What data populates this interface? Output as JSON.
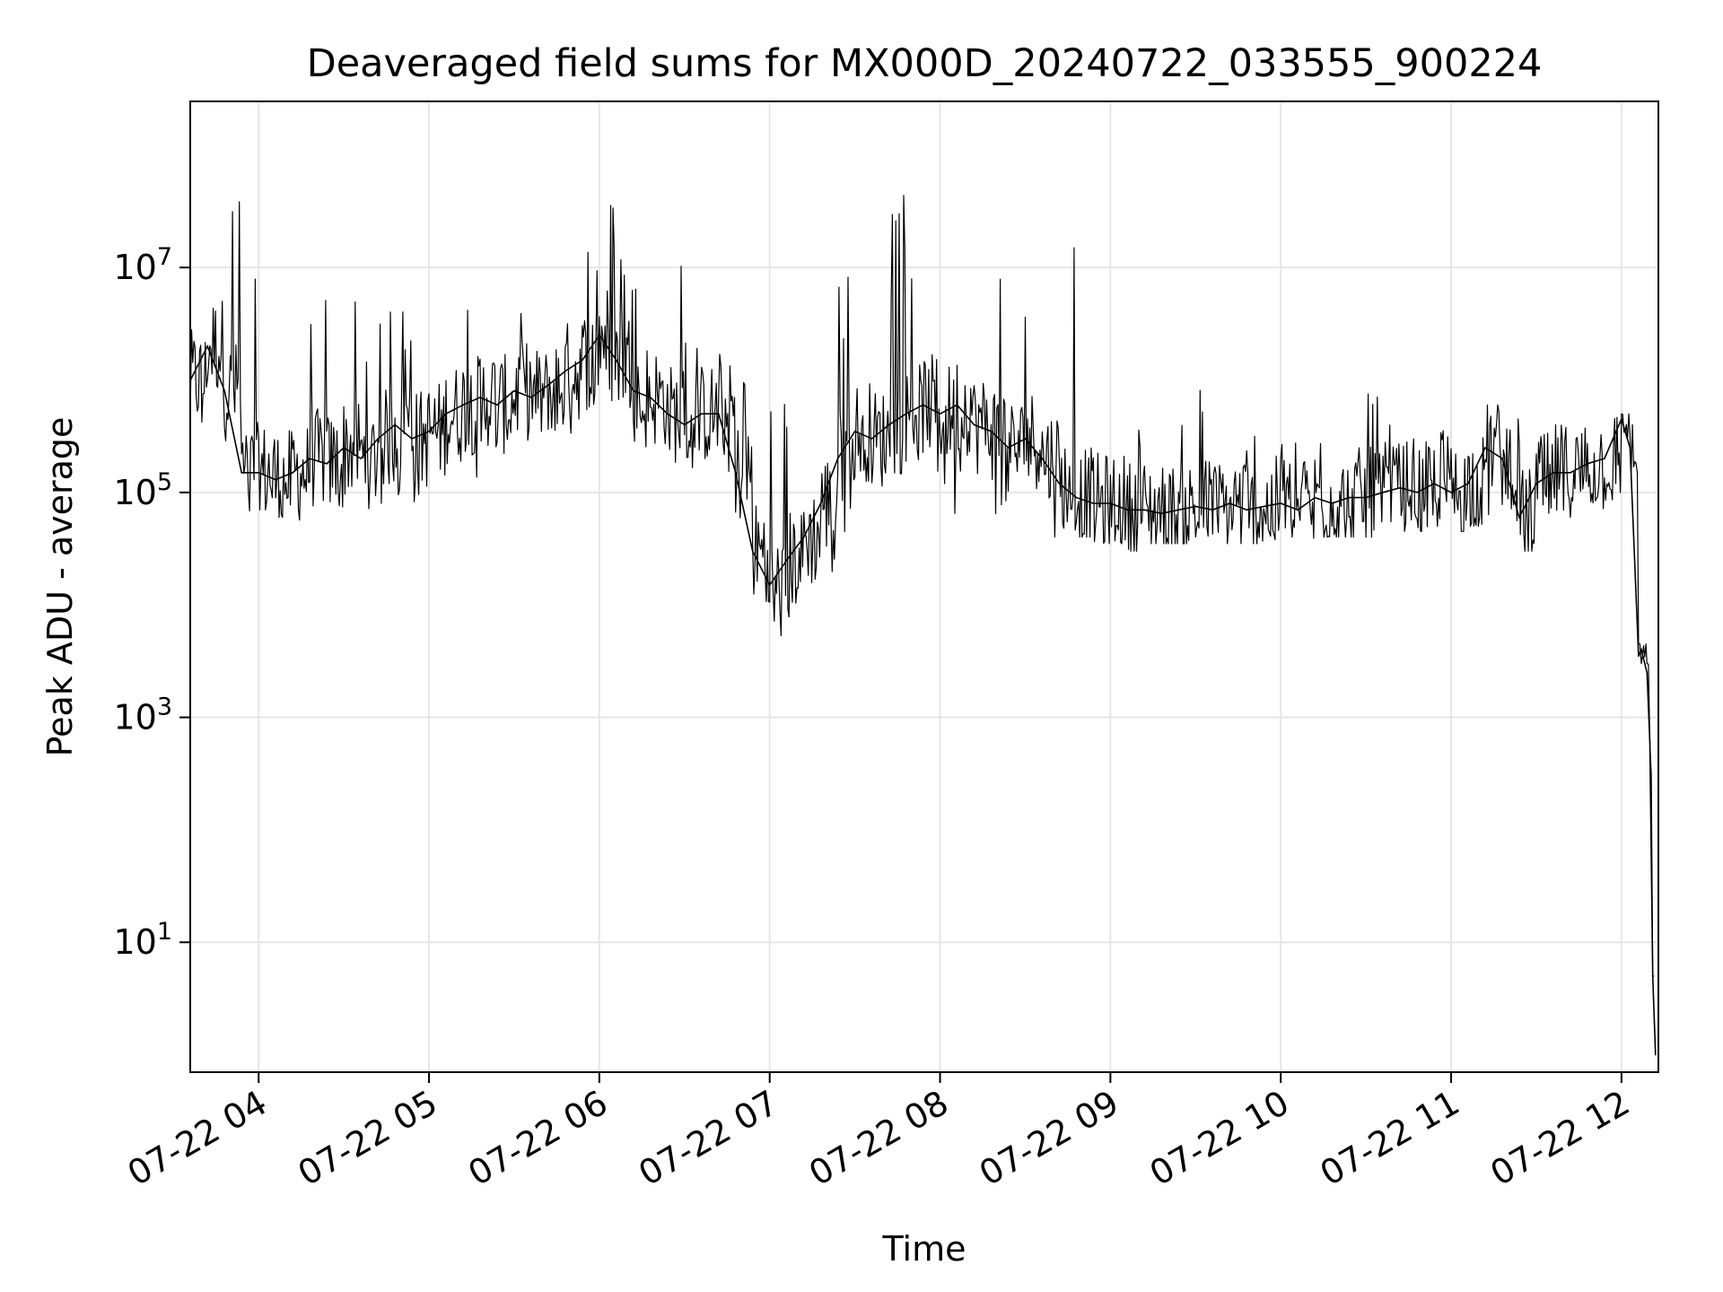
{
  "chart_data": {
    "type": "line",
    "title": "Deaveraged field sums for MX000D_20240722_033555_900224",
    "xlabel": "Time",
    "ylabel": "Peak ADU - average",
    "x_scale": "time",
    "y_scale": "log",
    "xlim": [
      "2024-07-22 03:35:55",
      "2024-07-22 12:13:00"
    ],
    "ylim": [
      0.7,
      300000000
    ],
    "grid": true,
    "line_color": "#000000",
    "grid_color": "#e6e6e6",
    "x_ticks": [
      "07-22 04",
      "07-22 05",
      "07-22 06",
      "07-22 07",
      "07-22 08",
      "07-22 09",
      "07-22 10",
      "07-22 11",
      "07-22 12"
    ],
    "x_tick_times": [
      "2024-07-22 04:00",
      "2024-07-22 05:00",
      "2024-07-22 06:00",
      "2024-07-22 07:00",
      "2024-07-22 08:00",
      "2024-07-22 09:00",
      "2024-07-22 10:00",
      "2024-07-22 11:00",
      "2024-07-22 12:00"
    ],
    "y_ticks": [
      {
        "value": 10,
        "base": "10",
        "exp": "1"
      },
      {
        "value": 1000,
        "base": "10",
        "exp": "3"
      },
      {
        "value": 100000,
        "base": "10",
        "exp": "5"
      },
      {
        "value": 10000000,
        "base": "10",
        "exp": "7"
      }
    ],
    "series": [
      {
        "x": [
          "2024-07-22 03:36",
          "2024-07-22 03:42",
          "2024-07-22 03:48",
          "2024-07-22 03:54",
          "2024-07-22 04:00",
          "2024-07-22 04:06",
          "2024-07-22 04:12",
          "2024-07-22 04:18",
          "2024-07-22 04:24",
          "2024-07-22 04:30",
          "2024-07-22 04:36",
          "2024-07-22 04:42",
          "2024-07-22 04:48",
          "2024-07-22 04:54",
          "2024-07-22 05:00",
          "2024-07-22 05:06",
          "2024-07-22 05:12",
          "2024-07-22 05:18",
          "2024-07-22 05:24",
          "2024-07-22 05:30",
          "2024-07-22 05:36",
          "2024-07-22 05:42",
          "2024-07-22 05:48",
          "2024-07-22 05:54",
          "2024-07-22 06:00",
          "2024-07-22 06:06",
          "2024-07-22 06:12",
          "2024-07-22 06:18",
          "2024-07-22 06:24",
          "2024-07-22 06:30",
          "2024-07-22 06:36",
          "2024-07-22 06:42",
          "2024-07-22 06:48",
          "2024-07-22 06:54",
          "2024-07-22 07:00",
          "2024-07-22 07:06",
          "2024-07-22 07:12",
          "2024-07-22 07:18",
          "2024-07-22 07:24",
          "2024-07-22 07:30",
          "2024-07-22 07:36",
          "2024-07-22 07:42",
          "2024-07-22 07:48",
          "2024-07-22 07:54",
          "2024-07-22 08:00",
          "2024-07-22 08:06",
          "2024-07-22 08:12",
          "2024-07-22 08:18",
          "2024-07-22 08:24",
          "2024-07-22 08:30",
          "2024-07-22 08:36",
          "2024-07-22 08:42",
          "2024-07-22 08:48",
          "2024-07-22 08:54",
          "2024-07-22 09:00",
          "2024-07-22 09:06",
          "2024-07-22 09:12",
          "2024-07-22 09:18",
          "2024-07-22 09:24",
          "2024-07-22 09:30",
          "2024-07-22 09:36",
          "2024-07-22 09:42",
          "2024-07-22 09:48",
          "2024-07-22 09:54",
          "2024-07-22 10:00",
          "2024-07-22 10:06",
          "2024-07-22 10:12",
          "2024-07-22 10:18",
          "2024-07-22 10:24",
          "2024-07-22 10:30",
          "2024-07-22 10:36",
          "2024-07-22 10:42",
          "2024-07-22 10:48",
          "2024-07-22 10:54",
          "2024-07-22 11:00",
          "2024-07-22 11:06",
          "2024-07-22 11:12",
          "2024-07-22 11:18",
          "2024-07-22 11:24",
          "2024-07-22 11:30",
          "2024-07-22 11:36",
          "2024-07-22 11:42",
          "2024-07-22 11:48",
          "2024-07-22 11:54",
          "2024-07-22 12:00",
          "2024-07-22 12:03",
          "2024-07-22 12:06",
          "2024-07-22 12:07",
          "2024-07-22 12:09",
          "2024-07-22 12:10",
          "2024-07-22 12:11",
          "2024-07-22 12:12"
        ],
        "y": [
          1000000,
          2000000,
          800000,
          150000,
          150000,
          130000,
          150000,
          200000,
          180000,
          250000,
          200000,
          300000,
          400000,
          300000,
          350000,
          500000,
          600000,
          700000,
          600000,
          800000,
          700000,
          900000,
          1200000,
          1500000,
          2500000,
          1500000,
          800000,
          700000,
          500000,
          400000,
          500000,
          500000,
          150000,
          30000,
          15000,
          25000,
          40000,
          80000,
          200000,
          350000,
          300000,
          400000,
          500000,
          600000,
          500000,
          600000,
          400000,
          350000,
          250000,
          300000,
          200000,
          120000,
          90000,
          80000,
          80000,
          70000,
          70000,
          65000,
          70000,
          75000,
          70000,
          80000,
          70000,
          75000,
          80000,
          70000,
          90000,
          80000,
          90000,
          90000,
          100000,
          110000,
          100000,
          120000,
          100000,
          120000,
          250000,
          200000,
          60000,
          120000,
          150000,
          150000,
          180000,
          200000,
          450000,
          250000,
          3500,
          4000,
          2500,
          600,
          5,
          1
        ],
        "spikes_max": [
          50000000,
          100000000,
          90000000,
          60000000,
          40000000,
          30000000,
          20000000,
          10000000,
          8000000,
          5000000,
          6000000,
          5000000,
          6000000,
          7000000,
          8000000,
          6000000,
          10000000,
          8000000,
          7000000,
          9000000,
          15000000,
          20000000,
          25000000,
          30000000,
          40000000,
          20000000,
          40000000,
          30000000,
          15000000,
          8000000,
          3000000,
          2000000,
          1500000,
          1000000,
          700000,
          900000,
          2000000,
          15000000,
          20000000,
          30000000,
          40000000,
          50000000,
          55000000,
          60000000,
          60000000,
          65000000,
          65000000,
          40000000,
          30000000,
          40000000,
          50000000,
          30000000,
          45000000,
          5000000,
          600000,
          400000,
          350000,
          300000,
          400000,
          1500000,
          350000,
          300000,
          350000,
          300000,
          350000,
          400000,
          350000,
          400000,
          450000,
          1500000,
          600000,
          350000,
          450000,
          400000,
          450000,
          500000,
          600000,
          450000,
          350000,
          450000,
          500000,
          400000,
          450000,
          600000,
          500000,
          400000,
          4500,
          4500,
          3000,
          1000,
          5,
          1
        ],
        "spikes_min": [
          300000,
          200000,
          70000,
          60000,
          70000,
          60000,
          50000,
          60000,
          60000,
          70000,
          60000,
          70000,
          80000,
          80000,
          90000,
          100000,
          120000,
          130000,
          150000,
          200000,
          200000,
          250000,
          300000,
          400000,
          500000,
          400000,
          250000,
          200000,
          150000,
          150000,
          200000,
          150000,
          40000,
          8000,
          5000,
          7000,
          10000,
          15000,
          40000,
          60000,
          50000,
          60000,
          70000,
          80000,
          50000,
          70000,
          50000,
          45000,
          40000,
          50000,
          40000,
          40000,
          40000,
          35000,
          35000,
          30000,
          35000,
          35000,
          35000,
          40000,
          35000,
          35000,
          35000,
          35000,
          40000,
          35000,
          40000,
          40000,
          40000,
          40000,
          45000,
          45000,
          45000,
          50000,
          45000,
          50000,
          60000,
          50000,
          30000,
          50000,
          55000,
          60000,
          60000,
          70000,
          300000,
          150000,
          3000,
          3000,
          1500,
          300,
          2,
          0.7
        ]
      }
    ]
  }
}
